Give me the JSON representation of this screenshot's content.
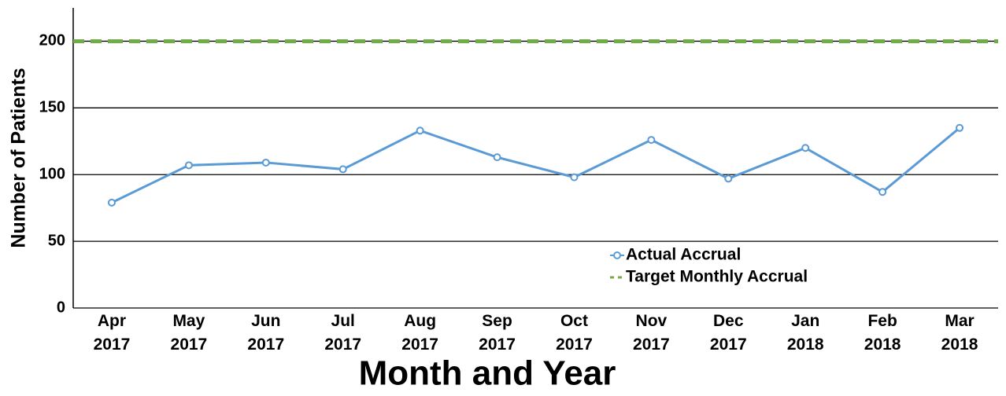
{
  "chart_data": {
    "type": "line",
    "y_label": "Number of Patients",
    "x_label": "Month and Year",
    "categories": [
      "Apr 2017",
      "May 2017",
      "Jun 2017",
      "Jul 2017",
      "Aug 2017",
      "Sep 2017",
      "Oct 2017",
      "Nov 2017",
      "Dec 2017",
      "Jan 2018",
      "Feb 2018",
      "Mar 2018"
    ],
    "series": [
      {
        "name": "Actual Accrual",
        "color": "#5b9bd5",
        "values": [
          79,
          107,
          109,
          104,
          133,
          113,
          98,
          126,
          97,
          120,
          87,
          135
        ]
      },
      {
        "name": "Target Monthly Accrual",
        "color": "#70ad47",
        "dashed": true,
        "values": [
          200,
          200,
          200,
          200,
          200,
          200,
          200,
          200,
          200,
          200,
          200,
          200
        ]
      }
    ],
    "ylim": [
      0,
      225
    ],
    "yticks": [
      0,
      50,
      100,
      150,
      200
    ],
    "grid": true,
    "legend": "lower right"
  }
}
